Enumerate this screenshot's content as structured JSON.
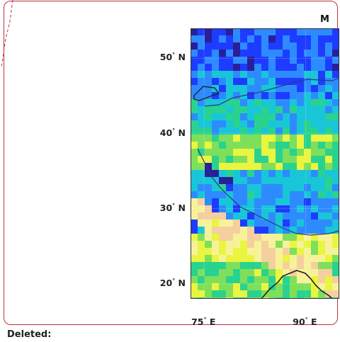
{
  "title": "M",
  "map": {
    "lat_labels": [
      {
        "deg": "50",
        "hem": "N",
        "lat": 50
      },
      {
        "deg": "40",
        "hem": "N",
        "lat": 40
      },
      {
        "deg": "30",
        "hem": "N",
        "lat": 30
      },
      {
        "deg": "20",
        "hem": "N",
        "lat": 20
      }
    ],
    "lon_labels": [
      {
        "deg": "75",
        "hem": "E",
        "lon": 75
      },
      {
        "deg": "90",
        "hem": "E",
        "lon": 90
      }
    ],
    "lat_range": [
      18,
      54
    ],
    "lon_range": [
      73,
      95
    ],
    "colormap": [
      "#2a1f9a",
      "#1e3cff",
      "#2e8bff",
      "#18c6d8",
      "#29d38f",
      "#7ee05a",
      "#e9f53f",
      "#f7f29a",
      "#f6cfa0"
    ]
  },
  "footer": {
    "deleted_label": "Deleted:"
  }
}
